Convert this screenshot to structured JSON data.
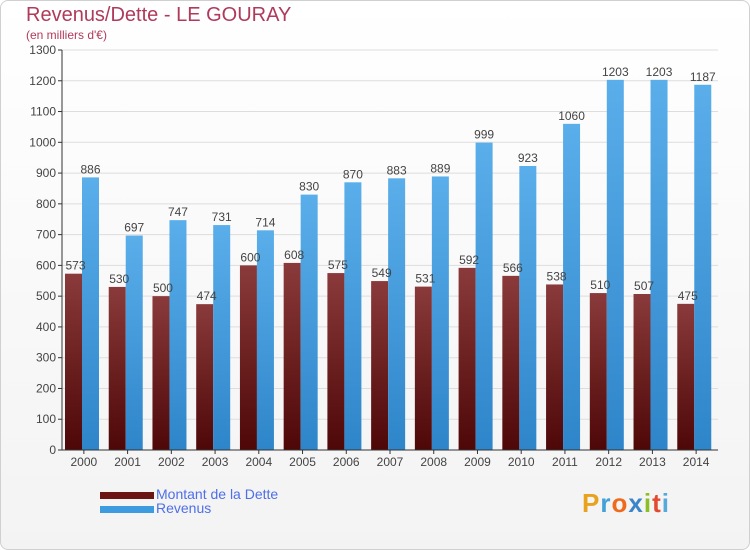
{
  "header": {
    "title": "Revenus/Dette - LE GOURAY",
    "subtitle": "(en milliers d'€)"
  },
  "legend": {
    "items": [
      {
        "label": "Montant de la Dette",
        "color": "#6b1414"
      },
      {
        "label": "Revenus",
        "color": "#3d9be0"
      }
    ]
  },
  "logo": {
    "text": "Proxiti"
  },
  "colors": {
    "debt_top": "#8a3a3a",
    "debt_bottom": "#4e0707",
    "revenue_top": "#5aaeea",
    "revenue_bottom": "#2e85c9",
    "grid": "#dddddd",
    "axis": "#333333",
    "label": "#444444"
  },
  "chart_data": {
    "type": "bar",
    "title": "Revenus/Dette - LE GOURAY",
    "ylabel": "(en milliers d'€)",
    "xlabel": "",
    "categories": [
      "2000",
      "2001",
      "2002",
      "2003",
      "2004",
      "2005",
      "2006",
      "2007",
      "2008",
      "2009",
      "2010",
      "2011",
      "2012",
      "2013",
      "2014"
    ],
    "series": [
      {
        "name": "Montant de la Dette",
        "values": [
          573,
          530,
          500,
          474,
          600,
          608,
          575,
          549,
          531,
          592,
          566,
          538,
          510,
          507,
          475
        ]
      },
      {
        "name": "Revenus",
        "values": [
          886,
          697,
          747,
          731,
          714,
          830,
          870,
          883,
          889,
          999,
          923,
          1060,
          1203,
          1203,
          1187
        ]
      }
    ],
    "ylim": [
      0,
      1300
    ],
    "yticks": [
      0,
      100,
      200,
      300,
      400,
      500,
      600,
      700,
      800,
      900,
      1000,
      1100,
      1200,
      1300
    ],
    "grid": true,
    "legend_position": "bottom-left"
  }
}
